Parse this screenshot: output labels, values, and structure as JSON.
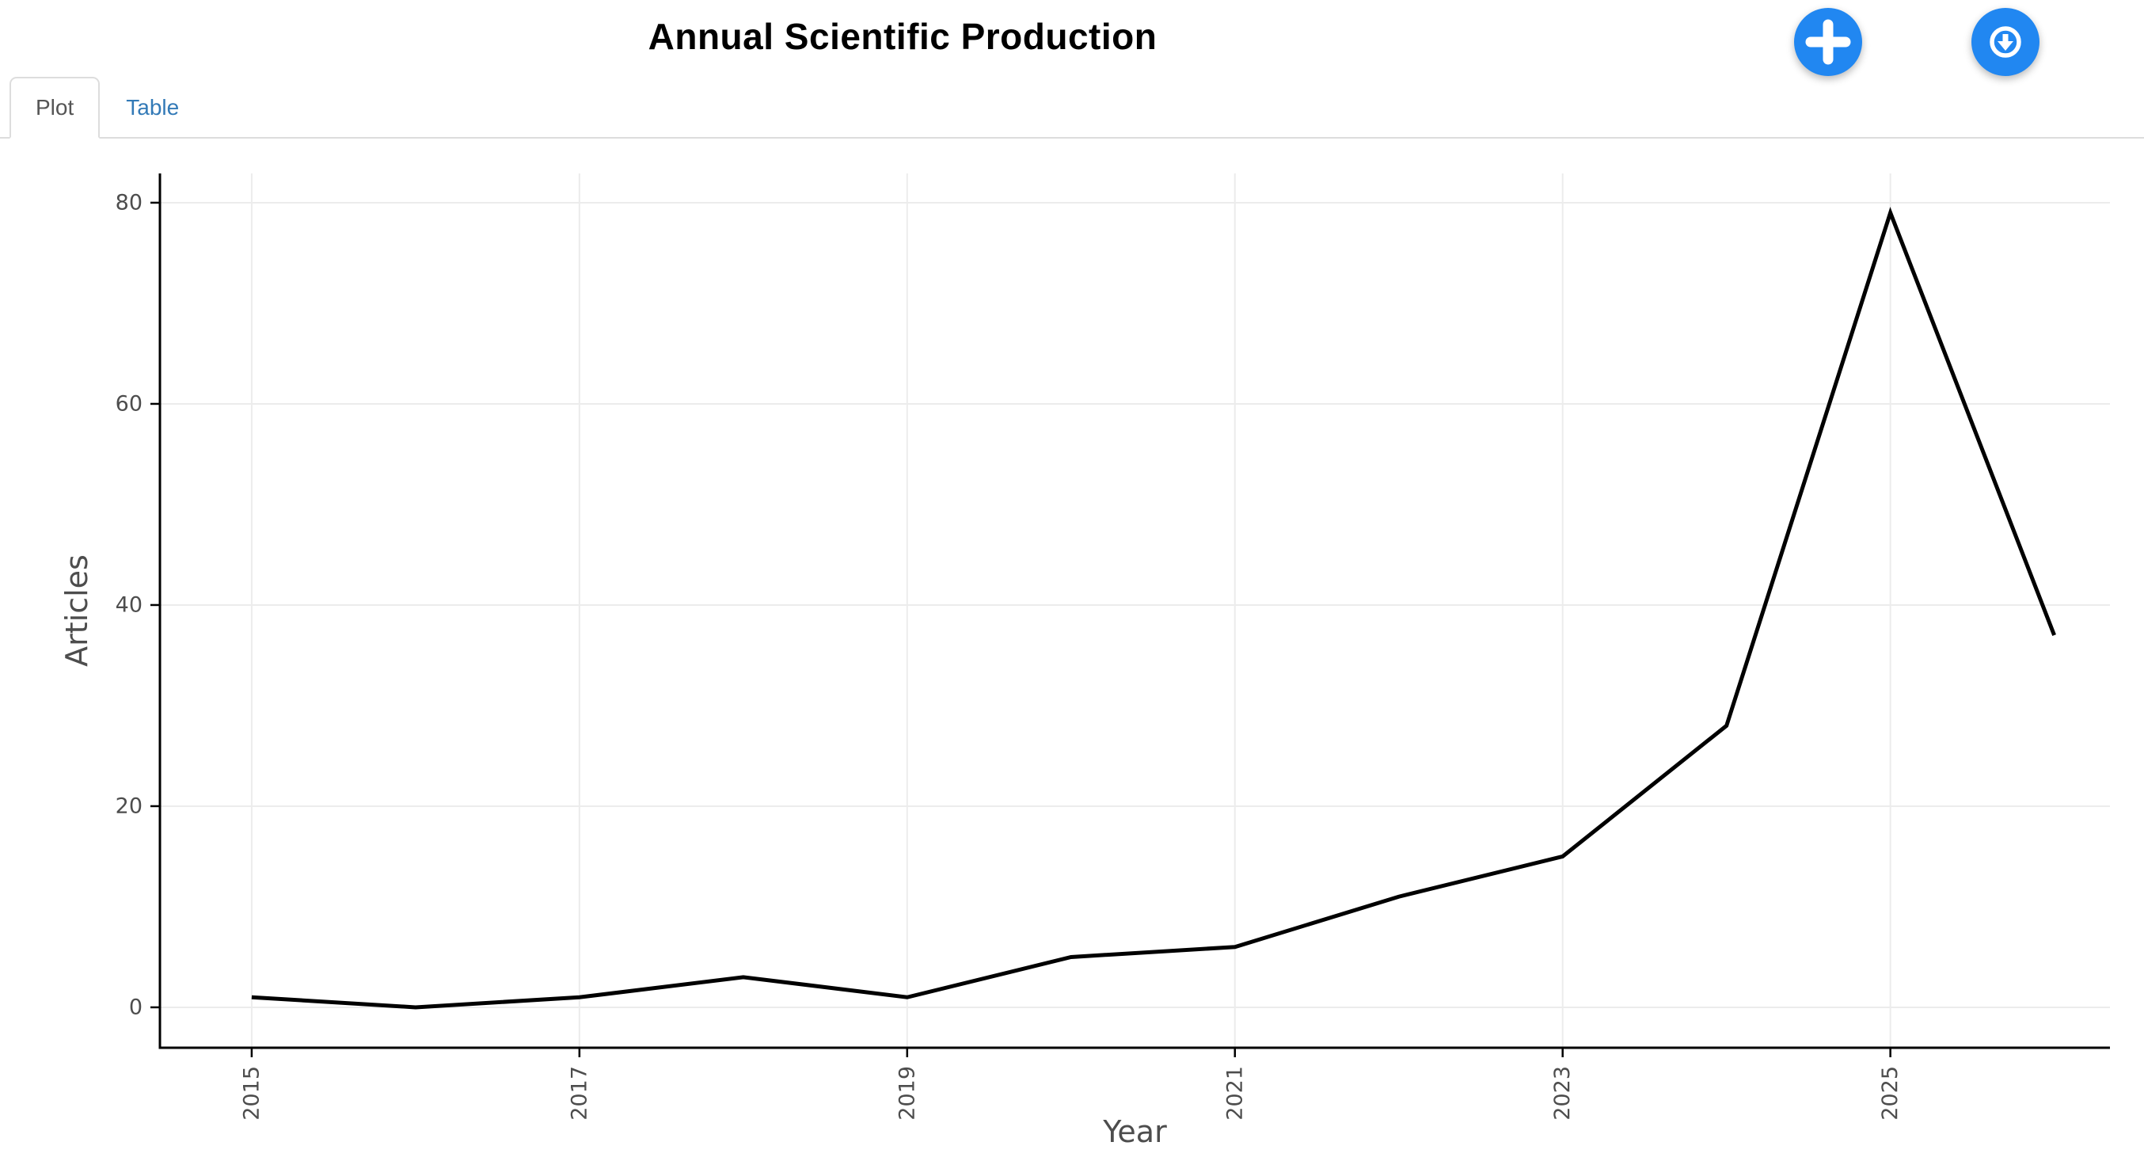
{
  "header": {
    "title": "Annual Scientific Production",
    "buttons": {
      "add": {
        "icon": "plus-icon",
        "color": "#2187f1"
      },
      "download": {
        "icon": "download-circle-icon",
        "color": "#2187f1"
      }
    }
  },
  "tabs": {
    "items": [
      {
        "label": "Plot",
        "active": true
      },
      {
        "label": "Table",
        "active": false
      }
    ],
    "active_text_color": "#555555",
    "link_color": "#337ab7",
    "border_color": "#dddddd"
  },
  "chart_data": {
    "type": "line",
    "title": "",
    "xlabel": "Year",
    "ylabel": "Articles",
    "x": [
      2015,
      2016,
      2017,
      2018,
      2019,
      2020,
      2021,
      2022,
      2023,
      2024,
      2025,
      2026
    ],
    "series": [
      {
        "name": "Articles",
        "values": [
          1,
          0,
          1,
          3,
          1,
          5,
          6,
          11,
          15,
          28,
          79,
          37
        ]
      }
    ],
    "x_ticks": [
      2015,
      2017,
      2019,
      2021,
      2023,
      2025
    ],
    "y_ticks": [
      0,
      20,
      40,
      60,
      80
    ],
    "xlim": [
      2014.44,
      2026.34
    ],
    "ylim": [
      -4.02,
      82.91
    ],
    "grid": true,
    "legend": "none",
    "line_color": "#000000",
    "axis_line_color": "#000000",
    "grid_color": "#ececec",
    "tick_label_color": "#4d4d4d",
    "axis_title_color": "#4d4d4d"
  }
}
